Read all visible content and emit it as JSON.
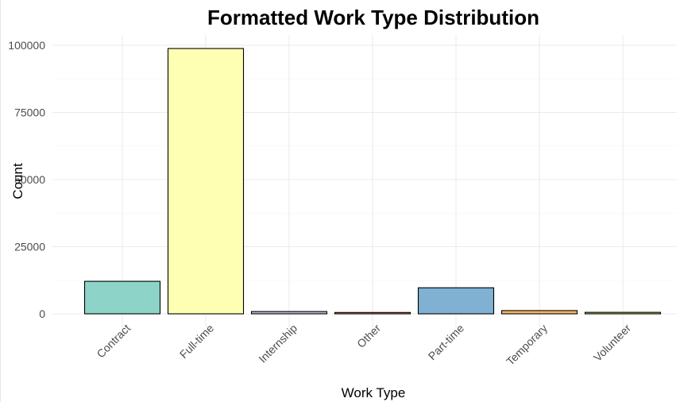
{
  "chart_data": {
    "type": "bar",
    "title": "Formatted Work Type Distribution",
    "xlabel": "Work Type",
    "ylabel": "Count",
    "categories": [
      "Contract",
      "Full-time",
      "Internship",
      "Other",
      "Part-time",
      "Temporary",
      "Volunteer"
    ],
    "values": [
      12100,
      98800,
      850,
      500,
      9700,
      1200,
      550
    ],
    "colors": [
      "#8DD3C7",
      "#FFFFB3",
      "#BEBADA",
      "#FB8072",
      "#80B1D3",
      "#FDB462",
      "#B3DE69"
    ],
    "ylim": [
      0,
      100000
    ],
    "yticks": [
      0,
      25000,
      50000,
      75000,
      100000
    ],
    "ytick_labels": [
      "0",
      "25000",
      "50000",
      "75000",
      "100000"
    ],
    "grid": true,
    "legend": "none"
  }
}
